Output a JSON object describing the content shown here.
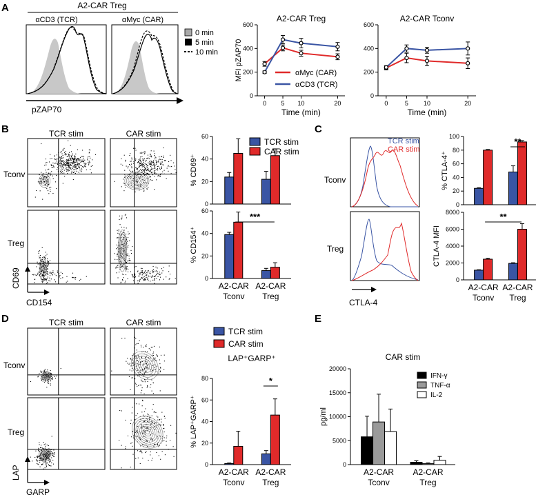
{
  "colors": {
    "blue": "#3a55a4",
    "red": "#e02a2a",
    "black": "#000000",
    "gray": "#9a9a9a",
    "white": "#ffffff",
    "contour": "#8a8a8a",
    "hist_fill": "#c8c8c8"
  },
  "panelA": {
    "letter": "A",
    "header": "A2-CAR Treg",
    "hist_titles": [
      "αCD3 (TCR)",
      "αMyc (CAR)"
    ],
    "xlabel": "pZAP70",
    "legend": [
      "0 min",
      "5 min",
      "10 min"
    ]
  },
  "panelB": {
    "letter": "B",
    "col_titles": [
      "TCR stim",
      "CAR stim"
    ],
    "row_labels": [
      "Tconv",
      "Treg"
    ],
    "y_axis": "CD69",
    "x_axis": "CD154"
  },
  "panelC": {
    "letter": "C",
    "row_labels": [
      "Tconv",
      "Treg"
    ],
    "legend": [
      "TCR stim",
      "CAR stim"
    ],
    "x_axis": "CTLA-4"
  },
  "panelD": {
    "letter": "D",
    "col_titles": [
      "TCR stim",
      "CAR stim"
    ],
    "row_labels": [
      "Tconv",
      "Treg"
    ],
    "y_axis": "LAP",
    "x_axis": "GARP"
  },
  "panelE": {
    "letter": "E"
  },
  "groups": {
    "g1": [
      "A2-CAR",
      "Tconv"
    ],
    "g2": [
      "A2-CAR",
      "Treg"
    ]
  },
  "chart_data": [
    {
      "id": "a_treg",
      "type": "line",
      "title": "A2-CAR Treg",
      "xlabel": "Time (min)",
      "ylabel": "MFI pZAP70",
      "x": [
        0,
        5,
        10,
        20
      ],
      "xticks": [
        0,
        5,
        10,
        20
      ],
      "xlim": [
        -2,
        22
      ],
      "ylim": [
        0,
        600
      ],
      "yticks": [
        0,
        200,
        400,
        600
      ],
      "series": [
        {
          "name": "αMyc (CAR)",
          "color": "#e02a2a",
          "values": [
            270,
            405,
            360,
            330
          ],
          "err": [
            20,
            25,
            25,
            25
          ]
        },
        {
          "name": "αCD3 (TCR)",
          "color": "#3a55a4",
          "values": [
            200,
            475,
            445,
            415
          ],
          "err": [
            10,
            35,
            40,
            35
          ]
        }
      ]
    },
    {
      "id": "a_tconv",
      "type": "line",
      "title": "A2-CAR Tconv",
      "xlabel": "Time (min)",
      "x": [
        0,
        5,
        10,
        20
      ],
      "xticks": [
        0,
        5,
        10,
        20
      ],
      "xlim": [
        -2,
        22
      ],
      "ylim": [
        0,
        600
      ],
      "yticks": [
        0,
        200,
        400,
        600
      ],
      "series": [
        {
          "name": "",
          "color": "#e02a2a",
          "values": [
            235,
            320,
            295,
            275
          ],
          "err": [
            15,
            40,
            40,
            45
          ]
        },
        {
          "name": "",
          "color": "#3a55a4",
          "values": [
            240,
            400,
            385,
            400
          ],
          "err": [
            15,
            30,
            25,
            55
          ]
        }
      ]
    },
    {
      "id": "b_cd69",
      "type": "bar",
      "ylabel": "% CD69⁺",
      "ylim": [
        0,
        60
      ],
      "yticks": [
        0,
        20,
        40,
        60
      ],
      "legend": [
        "TCR stim",
        "CAR stim"
      ],
      "series": [
        {
          "name": "TCR stim",
          "color": "#3a55a4",
          "values": [
            24,
            22
          ],
          "err": [
            4,
            7
          ]
        },
        {
          "name": "CAR stim",
          "color": "#e02a2a",
          "values": [
            45,
            43
          ],
          "err": [
            13,
            6
          ]
        }
      ]
    },
    {
      "id": "b_cd154",
      "type": "bar",
      "ylabel": "% CD154⁺",
      "ylim": [
        0,
        60
      ],
      "yticks": [
        0,
        20,
        40,
        60
      ],
      "annotation": "***",
      "series": [
        {
          "name": "TCR stim",
          "color": "#3a55a4",
          "values": [
            39,
            7
          ],
          "err": [
            2,
            2
          ]
        },
        {
          "name": "CAR stim",
          "color": "#e02a2a",
          "values": [
            50,
            10
          ],
          "err": [
            9,
            4
          ]
        }
      ]
    },
    {
      "id": "c_pct",
      "type": "bar",
      "ylabel": "% CTLA-4⁺",
      "ylim": [
        0,
        100
      ],
      "yticks": [
        0,
        20,
        40,
        60,
        80,
        100
      ],
      "annotation": "**",
      "series": [
        {
          "name": "TCR stim",
          "color": "#3a55a4",
          "values": [
            24,
            48
          ],
          "err": [
            1,
            9
          ]
        },
        {
          "name": "CAR stim",
          "color": "#e02a2a",
          "values": [
            80,
            92
          ],
          "err": [
            1,
            2
          ]
        }
      ]
    },
    {
      "id": "c_mfi",
      "type": "bar",
      "ylabel": "CTLA-4 MFI",
      "ylim": [
        0,
        8000
      ],
      "yticks": [
        0,
        2000,
        4000,
        6000,
        8000
      ],
      "annotation": "**",
      "series": [
        {
          "name": "TCR stim",
          "color": "#3a55a4",
          "values": [
            1150,
            1950
          ],
          "err": [
            50,
            80
          ]
        },
        {
          "name": "CAR stim",
          "color": "#e02a2a",
          "values": [
            2450,
            6000
          ],
          "err": [
            120,
            650
          ]
        }
      ]
    },
    {
      "id": "d_lap",
      "type": "bar",
      "title": "LAP⁺GARP⁺",
      "ylabel": "% LAP⁺GARP⁺",
      "ylim": [
        0,
        80
      ],
      "yticks": [
        0,
        20,
        40,
        60,
        80
      ],
      "legend": [
        "TCR stim",
        "CAR stim"
      ],
      "annotation": "*",
      "series": [
        {
          "name": "TCR stim",
          "color": "#3a55a4",
          "values": [
            1,
            10
          ],
          "err": [
            0.5,
            3
          ]
        },
        {
          "name": "CAR stim",
          "color": "#e02a2a",
          "values": [
            17,
            46
          ],
          "err": [
            14,
            15
          ]
        }
      ]
    },
    {
      "id": "e_cyt",
      "type": "bar",
      "title": "CAR stim",
      "ylabel": "pg/ml",
      "ylim": [
        0,
        20000
      ],
      "yticks": [
        0,
        5000,
        10000,
        15000,
        20000
      ],
      "legend": [
        "IFN-γ",
        "TNF-α",
        "IL-2"
      ],
      "series": [
        {
          "name": "IFN-γ",
          "color": "#000000",
          "values": [
            5800,
            500
          ],
          "err": [
            4300,
            300
          ]
        },
        {
          "name": "TNF-α",
          "color": "#9a9a9a",
          "values": [
            8900,
            200
          ],
          "err": [
            5800,
            150
          ]
        },
        {
          "name": "IL-2",
          "color": "#ffffff",
          "values": [
            6900,
            900
          ],
          "err": [
            4700,
            800
          ]
        }
      ]
    }
  ]
}
